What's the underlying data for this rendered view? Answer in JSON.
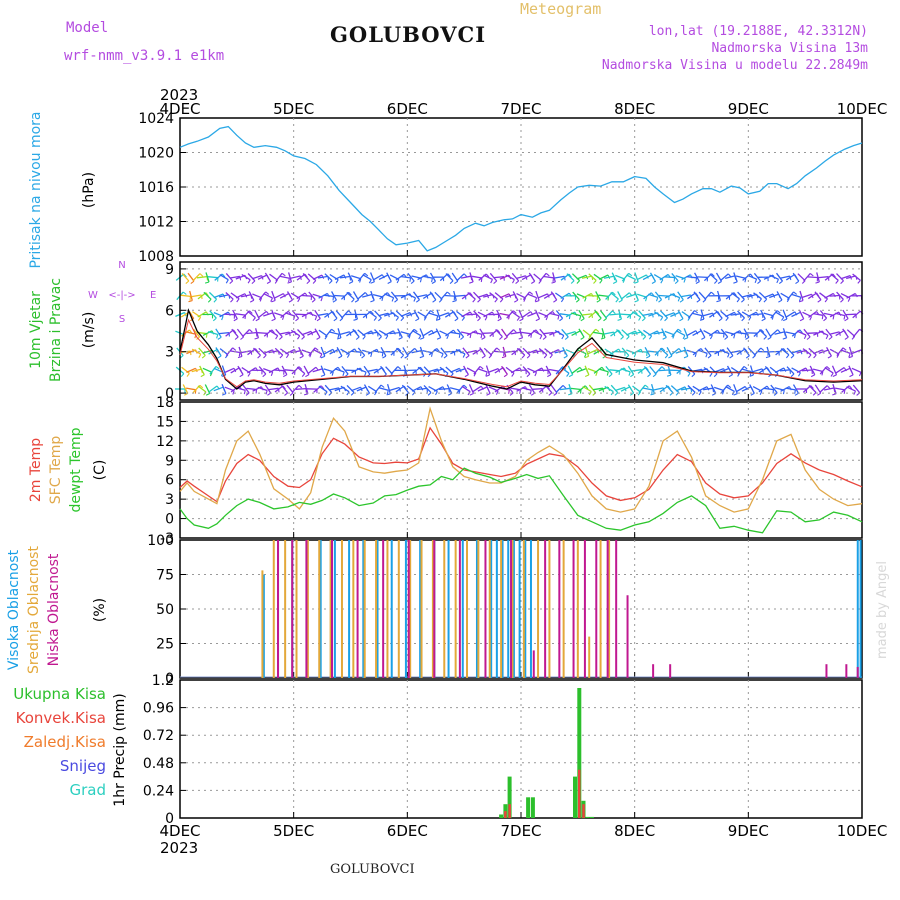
{
  "header": {
    "model_label": "Model",
    "model_name": "wrf-nmm_v3.9.1 e1km",
    "title": "GOLUBOVCI",
    "meteogram": "Meteogram",
    "lonlat": "lon,lat (19.2188E, 42.3312N)",
    "elev": "Nadmorska Visina 13m",
    "elev_model": "Nadmorska Visina u modelu 22.2849m",
    "year_top": "2023",
    "year_bottom": "2023",
    "footer_title": "GOLUBOVCI",
    "credit": "made by Angel"
  },
  "colors": {
    "pressure": "#2ba8e6",
    "t2m": "#e8453c",
    "tsfc": "#e0a84a",
    "dewpt": "#2cc52c",
    "high_cloud": "#1aa0e6",
    "mid_cloud": "#e3a83a",
    "low_cloud": "#c01890",
    "total_precip": "#2cbf2c",
    "conv_precip": "#e8453c",
    "frz_precip": "#f07c2c",
    "snow": "#4a4ae0",
    "hail": "#2ccfc0",
    "wind_dir_label": "#b44ce0"
  },
  "chart_data": [
    {
      "type": "line",
      "panel": "pressure",
      "ylabel": [
        "Pritisak na nivou mora",
        "(hPa)"
      ],
      "x_ticks": [
        "4DEC",
        "5DEC",
        "6DEC",
        "7DEC",
        "8DEC",
        "9DEC",
        "10DEC"
      ],
      "ylim": [
        1008,
        1024
      ],
      "y_ticks": [
        "1008",
        "1012",
        "1016",
        "1020",
        "1024"
      ],
      "series": [
        {
          "key": "slp",
          "x": [
            0,
            0.3,
            0.6,
            1.0,
            1.4,
            1.7,
            2.0,
            2.3,
            2.6,
            3.0,
            3.4,
            3.7,
            4.0,
            4.4,
            4.8,
            5.2,
            5.6,
            6.0,
            6.4,
            6.7,
            7.0,
            7.3,
            7.6,
            8.0,
            8.4,
            8.7,
            9.0,
            9.4,
            9.7,
            10.0,
            10.4,
            10.7,
            11.0,
            11.4,
            11.7,
            12.0,
            12.4,
            12.7,
            13.0,
            13.4,
            13.7,
            14.0,
            14.4,
            14.8,
            15.2,
            15.6,
            16.0,
            16.4,
            16.7,
            17.0,
            17.4,
            17.7,
            18.0,
            18.4,
            18.7,
            19.0,
            19.4,
            19.7,
            20.0,
            20.4,
            20.7,
            21.0,
            21.4,
            21.7,
            22.0,
            22.4,
            22.7,
            23.0,
            23.4,
            23.7,
            24.0
          ],
          "y": [
            1020.6,
            1021.0,
            1021.3,
            1021.8,
            1022.8,
            1023.0,
            1022.0,
            1021.1,
            1020.6,
            1020.8,
            1020.6,
            1020.2,
            1019.6,
            1019.3,
            1018.6,
            1017.3,
            1015.6,
            1014.2,
            1012.8,
            1012.0,
            1011.0,
            1010.0,
            1009.3,
            1009.5,
            1009.8,
            1008.6,
            1009.0,
            1009.8,
            1010.4,
            1011.2,
            1011.8,
            1011.5,
            1011.9,
            1012.2,
            1012.3,
            1012.8,
            1012.5,
            1013.0,
            1013.3,
            1014.5,
            1015.3,
            1016.0,
            1016.2,
            1016.1,
            1016.6,
            1016.6,
            1017.2,
            1017.0,
            1016.0,
            1015.2,
            1014.2,
            1014.6,
            1015.2,
            1015.8,
            1015.8,
            1015.4,
            1016.1,
            1015.9,
            1015.2,
            1015.5,
            1016.4,
            1016.4,
            1015.8,
            1016.4,
            1017.3,
            1018.2,
            1019.0,
            1019.7,
            1020.4,
            1020.8,
            1021.1
          ]
        }
      ]
    },
    {
      "type": "scatter",
      "panel": "wind",
      "ylabel": [
        "10m Vjetar",
        "Brzina i Pravac",
        "(m/s)"
      ],
      "compass_labels": {
        "north": "N",
        "south": "S",
        "west": "W",
        "east": "E",
        "arrow": "<-|->"
      },
      "x_ticks": [
        "4DEC",
        "5DEC",
        "6DEC",
        "7DEC",
        "8DEC",
        "9DEC",
        "10DEC"
      ],
      "ylim": [
        -0.5,
        9.5
      ],
      "y_ticks": [
        "0",
        "3",
        "6",
        "9"
      ],
      "series": [
        {
          "key": "speed_sim",
          "x": [
            0,
            0.3,
            0.6,
            1.0,
            1.3,
            1.6,
            2.0,
            2.3,
            2.6,
            3.0,
            3.5,
            4.0,
            5.0,
            6.0,
            7.0,
            8.0,
            9.0,
            10.0,
            11.0,
            11.5,
            12.0,
            12.5,
            13.0,
            13.5,
            14.0,
            14.5,
            15.0,
            16.0,
            17.0,
            18.0,
            19.0,
            20.0,
            21.0,
            22.0,
            23.0,
            24.0
          ],
          "y": [
            3.0,
            6.0,
            4.5,
            3.5,
            2.5,
            1.0,
            0.3,
            0.8,
            0.9,
            0.7,
            0.6,
            0.8,
            1.0,
            1.2,
            1.2,
            1.3,
            1.4,
            1.0,
            0.5,
            0.3,
            0.8,
            0.6,
            0.5,
            1.8,
            3.2,
            4.0,
            2.8,
            2.4,
            2.2,
            1.6,
            1.5,
            1.5,
            1.3,
            0.9,
            0.8,
            0.9
          ]
        }
      ]
    },
    {
      "type": "line",
      "panel": "temperature",
      "ylabel": [
        "2m Temp",
        "SFC Temp",
        "dewpt Temp",
        "(C)"
      ],
      "x_ticks": [
        "4DEC",
        "5DEC",
        "6DEC",
        "7DEC",
        "8DEC",
        "9DEC",
        "10DEC"
      ],
      "ylim": [
        -3,
        18
      ],
      "y_ticks": [
        "-3",
        "0",
        "3",
        "6",
        "9",
        "12",
        "15",
        "18"
      ],
      "series": [
        {
          "key": "t2m",
          "x": [
            0,
            0.25,
            0.5,
            1.0,
            1.3,
            1.6,
            2.0,
            2.4,
            2.8,
            3.3,
            3.8,
            4.2,
            4.6,
            5.0,
            5.4,
            5.8,
            6.3,
            6.8,
            7.2,
            7.6,
            8.0,
            8.4,
            8.8,
            9.2,
            9.6,
            10.0,
            10.4,
            10.9,
            11.3,
            11.8,
            12.2,
            12.6,
            13.0,
            13.5,
            14.0,
            14.5,
            15.0,
            15.5,
            16.0,
            16.5,
            17.0,
            17.5,
            18.0,
            18.5,
            19.0,
            19.5,
            20.0,
            20.5,
            21.0,
            21.5,
            22.0,
            22.5,
            23.0,
            23.5,
            24.0
          ],
          "y": [
            4.8,
            5.8,
            5.0,
            3.5,
            2.6,
            5.8,
            8.5,
            9.9,
            9.0,
            6.5,
            5.0,
            4.8,
            6.0,
            10.0,
            12.4,
            11.5,
            9.5,
            8.6,
            8.5,
            8.7,
            8.6,
            9.2,
            14.0,
            11.5,
            8.5,
            7.5,
            7.2,
            6.8,
            6.5,
            7.0,
            8.4,
            9.2,
            10.0,
            9.6,
            8.0,
            5.5,
            3.5,
            2.8,
            3.2,
            4.5,
            7.5,
            9.9,
            8.8,
            5.5,
            3.8,
            3.2,
            3.5,
            5.5,
            8.5,
            10.0,
            8.6,
            7.5,
            6.8,
            5.8,
            4.9
          ]
        },
        {
          "key": "tsfc",
          "x": [
            0,
            0.25,
            0.5,
            1.0,
            1.3,
            1.6,
            2.0,
            2.4,
            2.8,
            3.3,
            3.8,
            4.2,
            4.6,
            5.0,
            5.4,
            5.8,
            6.3,
            6.8,
            7.2,
            7.6,
            8.0,
            8.4,
            8.8,
            9.2,
            9.6,
            10.0,
            10.4,
            10.9,
            11.3,
            11.8,
            12.2,
            12.6,
            13.0,
            13.5,
            14.0,
            14.5,
            15.0,
            15.5,
            16.0,
            16.5,
            17.0,
            17.5,
            18.0,
            18.5,
            19.0,
            19.5,
            20.0,
            20.5,
            21.0,
            21.5,
            22.0,
            22.5,
            23.0,
            23.5,
            24.0
          ],
          "y": [
            4.2,
            5.5,
            4.2,
            3.0,
            2.3,
            7.5,
            12.0,
            13.5,
            10.0,
            4.6,
            3.0,
            1.5,
            4.0,
            11.0,
            15.5,
            13.5,
            8.0,
            7.2,
            7.0,
            7.3,
            7.5,
            8.6,
            17.0,
            12.0,
            8.0,
            6.5,
            6.0,
            5.5,
            5.5,
            6.5,
            9.0,
            10.2,
            11.2,
            9.8,
            7.0,
            3.5,
            1.5,
            1.0,
            1.5,
            5.0,
            12.0,
            13.5,
            9.5,
            3.5,
            2.0,
            1.0,
            1.5,
            6.0,
            12.0,
            13.0,
            7.5,
            4.5,
            3.0,
            2.0,
            2.3
          ]
        },
        {
          "key": "dewpt",
          "x": [
            0,
            0.25,
            0.5,
            1.0,
            1.3,
            1.6,
            2.0,
            2.4,
            2.8,
            3.3,
            3.8,
            4.2,
            4.6,
            5.0,
            5.4,
            5.8,
            6.3,
            6.8,
            7.2,
            7.6,
            8.0,
            8.4,
            8.8,
            9.2,
            9.6,
            10.0,
            10.4,
            10.9,
            11.3,
            11.8,
            12.2,
            12.6,
            13.0,
            13.5,
            14.0,
            14.5,
            15.0,
            15.5,
            16.0,
            16.5,
            17.0,
            17.5,
            18.0,
            18.5,
            19.0,
            19.5,
            20.0,
            20.5,
            21.0,
            21.5,
            22.0,
            22.5,
            23.0,
            23.5,
            24.0
          ],
          "y": [
            1.5,
            0.0,
            -1.0,
            -1.5,
            -0.8,
            0.5,
            2.0,
            3.0,
            2.5,
            1.5,
            1.8,
            2.5,
            2.2,
            2.8,
            3.8,
            3.2,
            2.0,
            2.4,
            3.5,
            3.7,
            4.4,
            5.0,
            5.2,
            6.5,
            6.0,
            7.8,
            7.0,
            6.4,
            5.6,
            6.2,
            6.8,
            6.2,
            6.6,
            3.5,
            0.5,
            -0.5,
            -1.5,
            -1.8,
            -1.0,
            -0.5,
            0.8,
            2.5,
            3.5,
            2.0,
            -1.5,
            -1.2,
            -1.8,
            -2.2,
            1.2,
            1.0,
            -0.5,
            -0.2,
            1.0,
            0.5,
            -0.5
          ]
        }
      ]
    },
    {
      "type": "bar",
      "panel": "clouds",
      "ylabel": [
        "Visoka Oblacnost",
        "Srednja Oblacnost",
        "Niska Oblacnost",
        "(%)"
      ],
      "x_ticks": [
        "4DEC",
        "5DEC",
        "6DEC",
        "7DEC",
        "8DEC",
        "9DEC",
        "10DEC"
      ],
      "ylim": [
        0,
        100
      ],
      "y_ticks": [
        "0",
        "25",
        "50",
        "75",
        "100"
      ],
      "series": [
        {
          "key": "high",
          "x": [
            3.0,
            3.5,
            4.0,
            4.5,
            5.0,
            5.5,
            6.0,
            6.5,
            7.0,
            7.5,
            8.0,
            8.5,
            9.0,
            9.5,
            10.0,
            10.5,
            11.0,
            11.2,
            11.4,
            11.6,
            11.8,
            12.0,
            12.2,
            12.4,
            23.9,
            24.0
          ],
          "y": [
            75,
            100,
            100,
            100,
            100,
            100,
            100,
            100,
            100,
            100,
            100,
            100,
            100,
            100,
            100,
            100,
            100,
            100,
            100,
            100,
            100,
            100,
            100,
            100,
            100,
            100
          ]
        },
        {
          "key": "mid",
          "x": [
            2.9,
            3.3,
            3.7,
            4.1,
            4.5,
            4.9,
            5.3,
            5.7,
            6.1,
            6.5,
            6.9,
            7.3,
            7.7,
            8.1,
            8.5,
            8.9,
            9.3,
            9.7,
            10.1,
            10.5,
            10.9,
            11.3,
            11.7,
            12.1,
            12.6,
            13.0,
            13.5,
            14.0,
            14.4,
            14.8,
            15.1
          ],
          "y": [
            78,
            100,
            100,
            100,
            100,
            100,
            100,
            100,
            100,
            100,
            100,
            100,
            100,
            100,
            100,
            100,
            100,
            100,
            100,
            100,
            100,
            100,
            100,
            100,
            100,
            100,
            100,
            100,
            30,
            100,
            100
          ]
        },
        {
          "key": "low",
          "x": [
            3.4,
            3.9,
            4.4,
            5.3,
            6.2,
            7.1,
            8.0,
            8.9,
            9.8,
            10.7,
            11.6,
            12.4,
            12.8,
            13.3,
            13.8,
            14.2,
            14.6,
            15.0,
            15.3,
            15.7,
            16.6,
            17.2,
            22.7,
            23.4,
            23.8
          ],
          "y": [
            100,
            100,
            100,
            100,
            100,
            100,
            100,
            100,
            100,
            100,
            100,
            20,
            100,
            100,
            100,
            100,
            100,
            100,
            100,
            60,
            10,
            10,
            10,
            10,
            8
          ]
        }
      ]
    },
    {
      "type": "bar",
      "panel": "precip",
      "ylabel": [
        "1hr Precip (mm)"
      ],
      "legend": [
        "Ukupna Kisa",
        "Konvek.Kisa",
        "Zaledj.Kisa",
        "Snijeg",
        "Grad"
      ],
      "x_ticks": [
        "4DEC",
        "5DEC",
        "6DEC",
        "7DEC",
        "8DEC",
        "9DEC",
        "10DEC"
      ],
      "ylim": [
        0,
        1.2
      ],
      "y_ticks": [
        "0",
        "0.24",
        "0.48",
        "0.72",
        "0.96",
        "1.2"
      ],
      "series": [
        {
          "key": "total",
          "x": [
            11.3,
            11.45,
            11.6,
            12.25,
            12.42,
            13.9,
            14.05,
            14.2,
            14.35,
            14.5
          ],
          "y": [
            0.03,
            0.12,
            0.36,
            0.18,
            0.18,
            0.36,
            1.13,
            0.15,
            0.01,
            0.01
          ]
        },
        {
          "key": "conv",
          "x": [
            11.45,
            11.6,
            14.05,
            14.2
          ],
          "y": [
            0.06,
            0.12,
            0.42,
            0.12
          ]
        }
      ]
    }
  ]
}
